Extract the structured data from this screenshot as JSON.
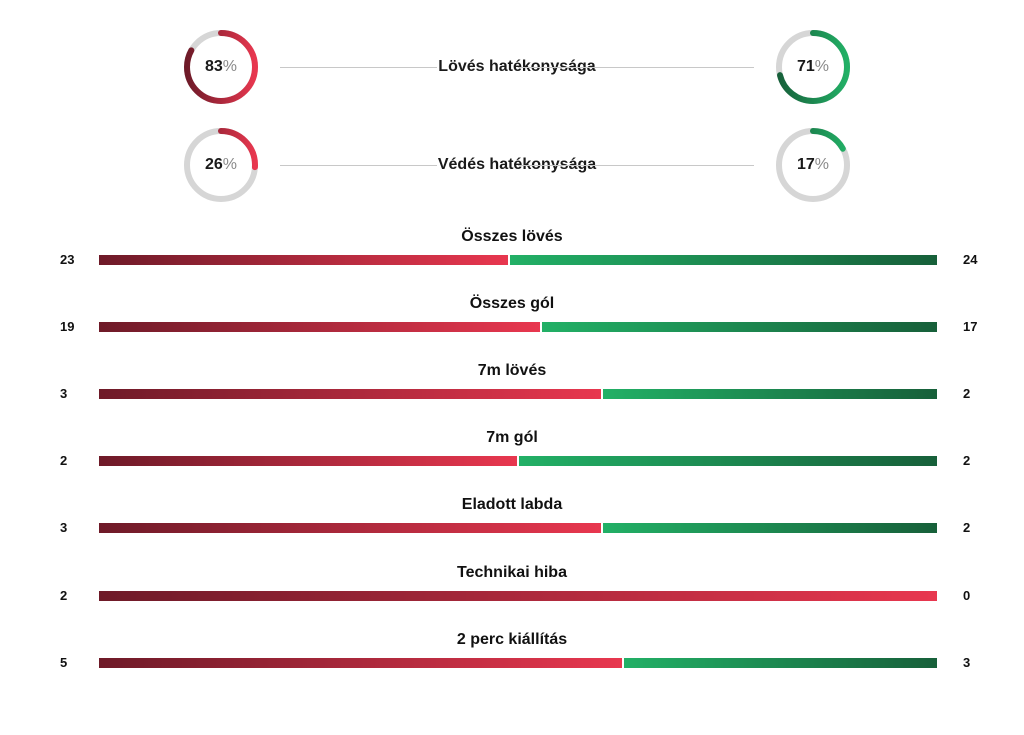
{
  "colors": {
    "home_dark": "#6e1a28",
    "home_light": "#e8374f",
    "away_light": "#22b066",
    "away_dark": "#17603a",
    "ring_track": "#d6d6d6"
  },
  "efficiency": [
    {
      "title": "Lövés hatékonysága",
      "home": 83,
      "away": 71,
      "pct_sign": "%"
    },
    {
      "title": "Védés hatékonysága",
      "home": 26,
      "away": 17,
      "pct_sign": "%"
    }
  ],
  "chart_data": {
    "type": "bar",
    "orientation": "horizontal-split",
    "categories": [
      "Összes lövés",
      "Összes gól",
      "7m lövés",
      "7m gól",
      "Eladott labda",
      "Technikai hiba",
      "2 perc kiállítás"
    ],
    "series": [
      {
        "values": [
          23,
          19,
          3,
          2,
          3,
          2,
          5
        ]
      },
      {
        "values": [
          24,
          17,
          2,
          2,
          2,
          0,
          3
        ]
      }
    ]
  },
  "stats": [
    {
      "title": "Összes lövés",
      "home": "23",
      "away": "24"
    },
    {
      "title": "Összes gól",
      "home": "19",
      "away": "17"
    },
    {
      "title": "7m lövés",
      "home": "3",
      "away": "2"
    },
    {
      "title": "7m gól",
      "home": "2",
      "away": "2"
    },
    {
      "title": "Eladott labda",
      "home": "3",
      "away": "2"
    },
    {
      "title": "Technikai hiba",
      "home": "2",
      "away": "0"
    },
    {
      "title": "2 perc kiállítás",
      "home": "5",
      "away": "3"
    }
  ]
}
